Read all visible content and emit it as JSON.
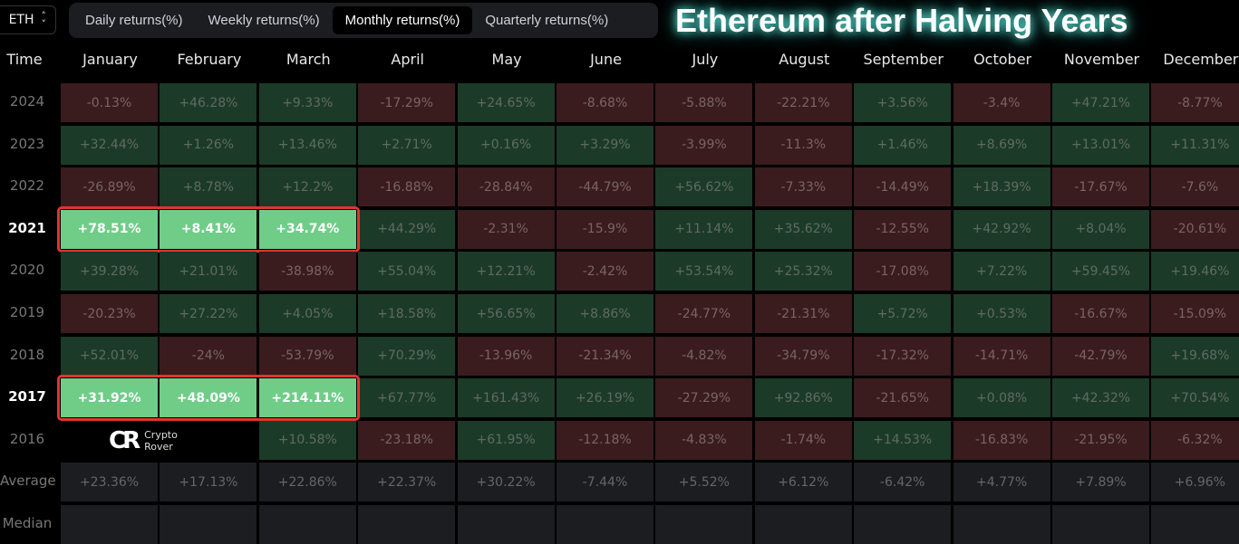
{
  "asset_selector": {
    "value": "ETH",
    "icon": "chevron-up-down-icon"
  },
  "tabs": [
    {
      "label": "Daily returns(%)",
      "active": false
    },
    {
      "label": "Weekly returns(%)",
      "active": false
    },
    {
      "label": "Monthly returns(%)",
      "active": true
    },
    {
      "label": "Quarterly returns(%)",
      "active": false
    }
  ],
  "table": {
    "time_header": "Time",
    "months": [
      "January",
      "February",
      "March",
      "April",
      "May",
      "June",
      "July",
      "August",
      "September",
      "October",
      "November",
      "December"
    ],
    "rows": [
      {
        "label": "2024",
        "values": [
          "-0.13%",
          "+46.28%",
          "+9.33%",
          "-17.29%",
          "+24.65%",
          "-8.68%",
          "-5.88%",
          "-22.21%",
          "+3.56%",
          "-3.4%",
          "+47.21%",
          "-8.77%"
        ]
      },
      {
        "label": "2023",
        "values": [
          "+32.44%",
          "+1.26%",
          "+13.46%",
          "+2.71%",
          "+0.16%",
          "+3.29%",
          "-3.99%",
          "-11.3%",
          "+1.46%",
          "+8.69%",
          "+13.01%",
          "+11.31%"
        ]
      },
      {
        "label": "2022",
        "values": [
          "-26.89%",
          "+8.78%",
          "+12.2%",
          "-16.88%",
          "-28.84%",
          "-44.79%",
          "+56.62%",
          "-7.33%",
          "-14.49%",
          "+18.39%",
          "-17.67%",
          "-7.6%"
        ]
      },
      {
        "label": "2021",
        "highlight": true,
        "values": [
          "+78.51%",
          "+8.41%",
          "+34.74%",
          "+44.29%",
          "-2.31%",
          "-15.9%",
          "+11.14%",
          "+35.62%",
          "-12.55%",
          "+42.92%",
          "+8.04%",
          "-20.61%"
        ]
      },
      {
        "label": "2020",
        "values": [
          "+39.28%",
          "+21.01%",
          "-38.98%",
          "+55.04%",
          "+12.21%",
          "-2.42%",
          "+53.54%",
          "+25.32%",
          "-17.08%",
          "+7.22%",
          "+59.45%",
          "+19.46%"
        ]
      },
      {
        "label": "2019",
        "values": [
          "-20.23%",
          "+27.22%",
          "+4.05%",
          "+18.58%",
          "+56.65%",
          "+8.86%",
          "-24.77%",
          "-21.31%",
          "+5.72%",
          "+0.53%",
          "-16.67%",
          "-15.09%"
        ]
      },
      {
        "label": "2018",
        "values": [
          "+52.01%",
          "-24%",
          "-53.79%",
          "+70.29%",
          "-13.96%",
          "-21.34%",
          "-4.82%",
          "-34.79%",
          "-17.32%",
          "-14.71%",
          "-42.79%",
          "+19.68%"
        ]
      },
      {
        "label": "2017",
        "highlight": true,
        "values": [
          "+31.92%",
          "+48.09%",
          "+214.11%",
          "+67.77%",
          "+161.43%",
          "+26.19%",
          "-27.29%",
          "+92.86%",
          "-21.65%",
          "+0.08%",
          "+42.32%",
          "+70.54%"
        ]
      },
      {
        "label": "2016",
        "values": [
          null,
          null,
          "+10.58%",
          "-23.18%",
          "+61.95%",
          "-12.18%",
          "-4.83%",
          "-1.74%",
          "+14.53%",
          "-16.83%",
          "-21.95%",
          "-6.32%"
        ]
      },
      {
        "label": "Average",
        "summary": true,
        "values": [
          "+23.36%",
          "+17.13%",
          "+22.86%",
          "+22.37%",
          "+30.22%",
          "-7.44%",
          "+5.52%",
          "+6.12%",
          "-6.42%",
          "+4.77%",
          "+7.89%",
          "+6.96%"
        ]
      },
      {
        "label": "Median",
        "summary": true,
        "values": [
          "",
          "",
          "",
          "",
          "",
          "",
          "",
          "",
          "",
          "",
          "",
          ""
        ]
      }
    ],
    "highlighted_months": 3
  },
  "overlay_title": "Ethereum after Halving Years",
  "watermark": {
    "mark": "CR",
    "line1": "Crypto",
    "line2": "Rover"
  },
  "colors": {
    "positive": "#1c3a28",
    "negative": "#3a1c1e",
    "highlight": "#6fcd88",
    "outline": "#e0352b"
  }
}
